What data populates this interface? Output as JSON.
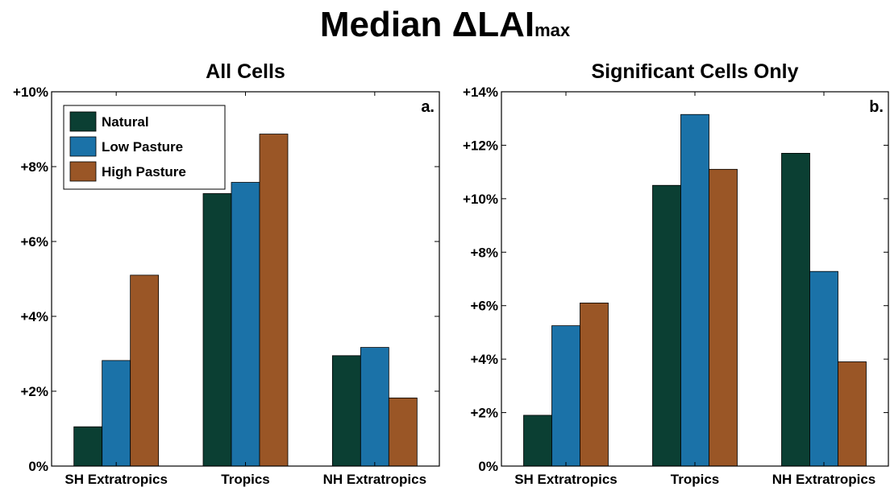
{
  "title": {
    "main": "Median ΔLAI",
    "subscript": "max"
  },
  "chart_data": [
    {
      "type": "bar",
      "title": "All Cells",
      "panel_label": "a.",
      "categories": [
        "SH Extratropics",
        "Tropics",
        "NH Extratropics"
      ],
      "series": [
        {
          "name": "Natural",
          "color": "#0b3f33",
          "values": [
            1.05,
            7.28,
            2.95
          ]
        },
        {
          "name": "Low Pasture",
          "color": "#1b72a8",
          "values": [
            2.82,
            7.58,
            3.17
          ]
        },
        {
          "name": "High Pasture",
          "color": "#9a5626",
          "values": [
            5.1,
            8.87,
            1.82
          ]
        }
      ],
      "ylim": [
        0,
        10
      ],
      "yticks": [
        0,
        2,
        4,
        6,
        8,
        10
      ],
      "ytick_labels": [
        "0%",
        "+2%",
        "+4%",
        "+6%",
        "+8%",
        "+10%"
      ],
      "legend": "top-left",
      "grid": false
    },
    {
      "type": "bar",
      "title": "Significant Cells Only",
      "panel_label": "b.",
      "categories": [
        "SH Extratropics",
        "Tropics",
        "NH Extratropics"
      ],
      "series": [
        {
          "name": "Natural",
          "color": "#0b3f33",
          "values": [
            1.9,
            10.5,
            11.7
          ]
        },
        {
          "name": "Low Pasture",
          "color": "#1b72a8",
          "values": [
            5.25,
            13.15,
            7.28
          ]
        },
        {
          "name": "High Pasture",
          "color": "#9a5626",
          "values": [
            6.1,
            11.1,
            3.9
          ]
        }
      ],
      "ylim": [
        0,
        14
      ],
      "yticks": [
        0,
        2,
        4,
        6,
        8,
        10,
        12,
        14
      ],
      "ytick_labels": [
        "0%",
        "+2%",
        "+4%",
        "+6%",
        "+8%",
        "+10%",
        "+12%",
        "+14%"
      ],
      "legend": "none",
      "grid": false
    }
  ]
}
